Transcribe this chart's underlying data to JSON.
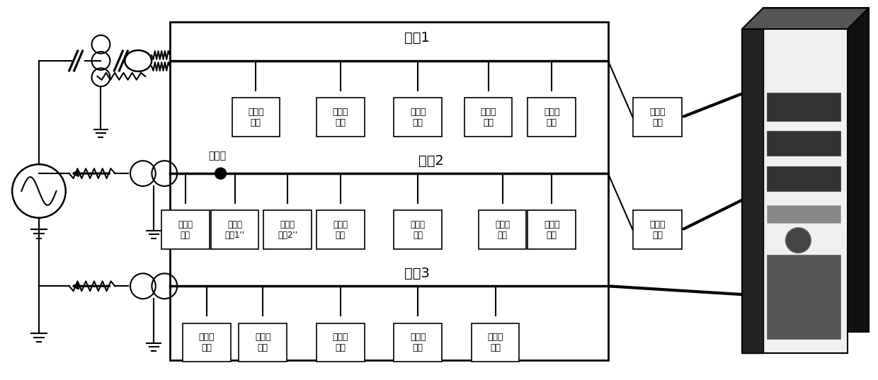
{
  "bg_color": "#ffffff",
  "line_color": "#000000",
  "line_width": 1.5,
  "line1_label": "线路1",
  "line2_label": "线路2",
  "line3_label": "线路3",
  "lightning_label": "雷击点",
  "sensors_line1": [
    "监测传\n感器",
    "监测传\n感器",
    "监测传\n感器",
    "监测传\n感器"
  ],
  "sensors_line2": [
    "监测传\n感器",
    "监测传\n感器1''",
    "监测传\n感器2''",
    "监测传\n感器",
    "监测传\n感器",
    "监测传\n感器"
  ],
  "sensors_line3": [
    "监测传\n感器",
    "监测传\n感器",
    "监测传\n感器",
    "监测传\n感器",
    "监测传\n感器"
  ],
  "sensor_right1": "监测传\n感器",
  "sensor_right2": "监测传\n感器"
}
